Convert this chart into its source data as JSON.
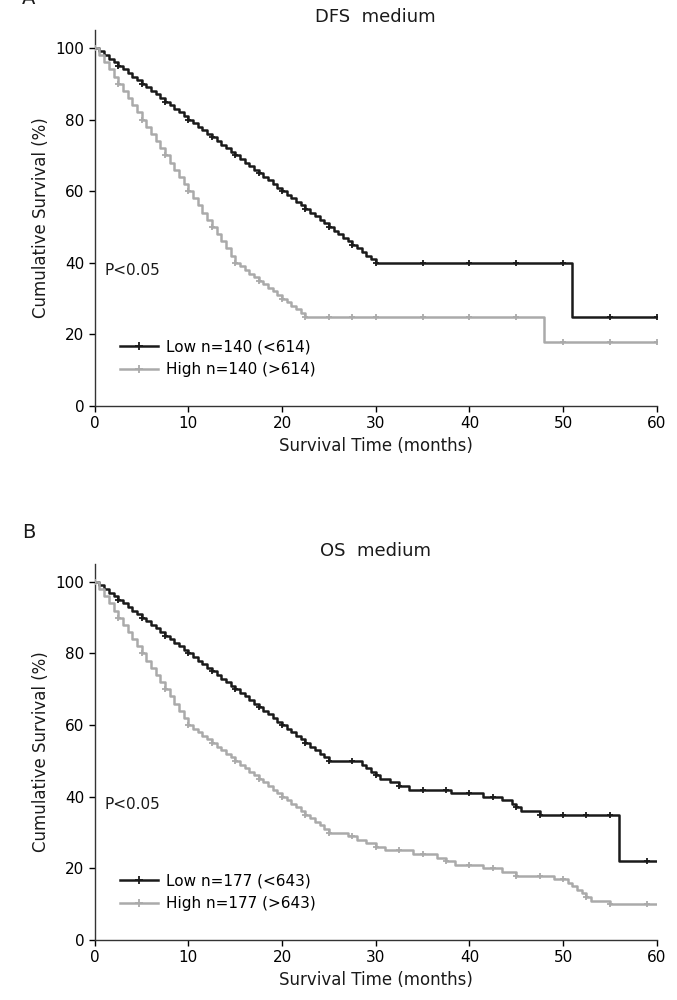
{
  "panel_A": {
    "title": "DFS  medium",
    "xlabel": "Survival Time (months)",
    "ylabel": "Cumulative Survival (%)",
    "pvalue": "P<0.05",
    "legend_low": "Low n=140 (<614)",
    "legend_high": "High n=140 (>614)",
    "xlim": [
      0,
      60
    ],
    "ylim": [
      0,
      105
    ],
    "xticks": [
      0,
      10,
      20,
      30,
      40,
      50,
      60
    ],
    "yticks": [
      0,
      20,
      40,
      60,
      80,
      100
    ],
    "low_x": [
      0,
      0.5,
      1,
      1.5,
      2,
      2.5,
      3,
      3.5,
      4,
      4.5,
      5,
      5.5,
      6,
      6.5,
      7,
      7.5,
      8,
      8.5,
      9,
      9.5,
      10,
      10.5,
      11,
      11.5,
      12,
      12.5,
      13,
      13.5,
      14,
      14.5,
      15,
      15.5,
      16,
      16.5,
      17,
      17.5,
      18,
      18.5,
      19,
      19.5,
      20,
      20.5,
      21,
      21.5,
      22,
      22.5,
      23,
      23.5,
      24,
      24.5,
      25,
      25.5,
      26,
      26.5,
      27,
      27.5,
      28,
      28.5,
      29,
      29.5,
      30,
      31,
      32,
      33,
      34,
      35,
      36,
      37,
      38,
      39,
      40,
      41,
      42,
      43,
      44,
      45,
      46,
      47,
      48,
      49,
      50,
      51,
      52,
      53,
      54,
      55,
      56,
      57,
      58,
      59,
      60
    ],
    "low_y": [
      100,
      99,
      98,
      97,
      96,
      95,
      94,
      93,
      92,
      91,
      90,
      89,
      88,
      87,
      86,
      85,
      84,
      83,
      82,
      81,
      80,
      79,
      78,
      77,
      76,
      75,
      74,
      73,
      72,
      71,
      70,
      69,
      68,
      67,
      66,
      65,
      64,
      63,
      62,
      61,
      60,
      59,
      58,
      57,
      56,
      55,
      54,
      53,
      52,
      51,
      50,
      49,
      48,
      47,
      46,
      45,
      44,
      43,
      42,
      41,
      40,
      40,
      40,
      40,
      40,
      40,
      40,
      40,
      40,
      40,
      40,
      40,
      40,
      40,
      40,
      40,
      40,
      40,
      40,
      40,
      40,
      25,
      25,
      25,
      25,
      25,
      25,
      25,
      25,
      25,
      25
    ],
    "high_x": [
      0,
      0.5,
      1,
      1.5,
      2,
      2.5,
      3,
      3.5,
      4,
      4.5,
      5,
      5.5,
      6,
      6.5,
      7,
      7.5,
      8,
      8.5,
      9,
      9.5,
      10,
      10.5,
      11,
      11.5,
      12,
      12.5,
      13,
      13.5,
      14,
      14.5,
      15,
      15.5,
      16,
      16.5,
      17,
      17.5,
      18,
      18.5,
      19,
      19.5,
      20,
      20.5,
      21,
      21.5,
      22,
      22.5,
      23,
      23.5,
      24,
      24.5,
      25,
      25.5,
      26,
      26.5,
      27,
      27.5,
      28,
      28.5,
      29,
      29.5,
      30,
      31,
      32,
      33,
      34,
      35,
      36,
      37,
      38,
      39,
      40,
      41,
      42,
      43,
      44,
      45,
      46,
      47,
      48,
      49,
      50,
      51,
      52,
      53,
      54,
      55,
      56,
      57,
      58,
      59,
      60
    ],
    "high_y": [
      100,
      98,
      96,
      94,
      92,
      90,
      88,
      86,
      84,
      82,
      80,
      78,
      76,
      74,
      72,
      70,
      68,
      66,
      64,
      62,
      60,
      58,
      56,
      54,
      52,
      50,
      48,
      46,
      44,
      42,
      40,
      39,
      38,
      37,
      36,
      35,
      34,
      33,
      32,
      31,
      30,
      29,
      28,
      27,
      26,
      25,
      25,
      25,
      25,
      25,
      25,
      25,
      25,
      25,
      25,
      25,
      25,
      25,
      25,
      25,
      25,
      25,
      25,
      25,
      25,
      25,
      25,
      25,
      25,
      25,
      25,
      25,
      25,
      25,
      25,
      25,
      25,
      25,
      18,
      18,
      18,
      18,
      18,
      18,
      18,
      18,
      18,
      18,
      18,
      18,
      18
    ]
  },
  "panel_B": {
    "title": "OS  medium",
    "xlabel": "Survival Time (months)",
    "ylabel": "Cumulative Survival (%)",
    "pvalue": "P<0.05",
    "legend_low": "Low n=177 (<643)",
    "legend_high": "High n=177 (>643)",
    "xlim": [
      0,
      60
    ],
    "ylim": [
      0,
      105
    ],
    "xticks": [
      0,
      10,
      20,
      30,
      40,
      50,
      60
    ],
    "yticks": [
      0,
      20,
      40,
      60,
      80,
      100
    ],
    "low_x": [
      0,
      0.5,
      1,
      1.5,
      2,
      2.5,
      3,
      3.5,
      4,
      4.5,
      5,
      5.5,
      6,
      6.5,
      7,
      7.5,
      8,
      8.5,
      9,
      9.5,
      10,
      10.5,
      11,
      11.5,
      12,
      12.5,
      13,
      13.5,
      14,
      14.5,
      15,
      15.5,
      16,
      16.5,
      17,
      17.5,
      18,
      18.5,
      19,
      19.5,
      20,
      20.5,
      21,
      21.5,
      22,
      22.5,
      23,
      23.5,
      24,
      24.5,
      25,
      25.5,
      26,
      26.5,
      27,
      27.5,
      28,
      28.5,
      29,
      29.5,
      30,
      30.5,
      31,
      31.5,
      32,
      32.5,
      33,
      33.5,
      34,
      34.5,
      35,
      35.5,
      36,
      36.5,
      37,
      37.5,
      38,
      38.5,
      39,
      39.5,
      40,
      40.5,
      41,
      41.5,
      42,
      42.5,
      43,
      43.5,
      44,
      44.5,
      45,
      45.5,
      46,
      46.5,
      47,
      47.5,
      48,
      48.5,
      49,
      49.5,
      50,
      50.5,
      51,
      51.5,
      52,
      52.5,
      53,
      53.5,
      54,
      54.5,
      55,
      55.5,
      56,
      57,
      58,
      59,
      60
    ],
    "low_y": [
      100,
      99,
      98,
      97,
      96,
      95,
      94,
      93,
      92,
      91,
      90,
      89,
      88,
      87,
      86,
      85,
      84,
      83,
      82,
      81,
      80,
      79,
      78,
      77,
      76,
      75,
      74,
      73,
      72,
      71,
      70,
      69,
      68,
      67,
      66,
      65,
      64,
      63,
      62,
      61,
      60,
      59,
      58,
      57,
      56,
      55,
      54,
      53,
      52,
      51,
      50,
      50,
      50,
      50,
      50,
      50,
      50,
      49,
      48,
      47,
      46,
      45,
      45,
      44,
      44,
      43,
      43,
      42,
      42,
      42,
      42,
      42,
      42,
      42,
      42,
      42,
      41,
      41,
      41,
      41,
      41,
      41,
      41,
      40,
      40,
      40,
      40,
      39,
      39,
      38,
      37,
      36,
      36,
      36,
      36,
      35,
      35,
      35,
      35,
      35,
      35,
      35,
      35,
      35,
      35,
      35,
      35,
      35,
      35,
      35,
      35,
      35,
      22,
      22,
      22,
      22,
      22
    ],
    "high_x": [
      0,
      0.5,
      1,
      1.5,
      2,
      2.5,
      3,
      3.5,
      4,
      4.5,
      5,
      5.5,
      6,
      6.5,
      7,
      7.5,
      8,
      8.5,
      9,
      9.5,
      10,
      10.5,
      11,
      11.5,
      12,
      12.5,
      13,
      13.5,
      14,
      14.5,
      15,
      15.5,
      16,
      16.5,
      17,
      17.5,
      18,
      18.5,
      19,
      19.5,
      20,
      20.5,
      21,
      21.5,
      22,
      22.5,
      23,
      23.5,
      24,
      24.5,
      25,
      25.5,
      26,
      26.5,
      27,
      27.5,
      28,
      28.5,
      29,
      29.5,
      30,
      30.5,
      31,
      31.5,
      32,
      32.5,
      33,
      33.5,
      34,
      34.5,
      35,
      35.5,
      36,
      36.5,
      37,
      37.5,
      38,
      38.5,
      39,
      39.5,
      40,
      40.5,
      41,
      41.5,
      42,
      42.5,
      43,
      43.5,
      44,
      44.5,
      45,
      45.5,
      46,
      46.5,
      47,
      47.5,
      48,
      48.5,
      49,
      49.5,
      50,
      50.5,
      51,
      51.5,
      52,
      52.5,
      53,
      53.5,
      54,
      54.5,
      55,
      55.5,
      56,
      57,
      58,
      59,
      60
    ],
    "high_y": [
      100,
      98,
      96,
      94,
      92,
      90,
      88,
      86,
      84,
      82,
      80,
      78,
      76,
      74,
      72,
      70,
      68,
      66,
      64,
      62,
      60,
      59,
      58,
      57,
      56,
      55,
      54,
      53,
      52,
      51,
      50,
      49,
      48,
      47,
      46,
      45,
      44,
      43,
      42,
      41,
      40,
      39,
      38,
      37,
      36,
      35,
      34,
      33,
      32,
      31,
      30,
      30,
      30,
      30,
      29,
      29,
      28,
      28,
      27,
      27,
      26,
      26,
      25,
      25,
      25,
      25,
      25,
      25,
      24,
      24,
      24,
      24,
      24,
      23,
      23,
      22,
      22,
      21,
      21,
      21,
      21,
      21,
      21,
      20,
      20,
      20,
      20,
      19,
      19,
      19,
      18,
      18,
      18,
      18,
      18,
      18,
      18,
      18,
      17,
      17,
      17,
      16,
      15,
      14,
      13,
      12,
      11,
      11,
      11,
      11,
      10,
      10,
      10,
      10,
      10,
      10,
      10
    ]
  },
  "low_color": "#1a1a1a",
  "high_color": "#aaaaaa",
  "bg_color": "#ffffff",
  "label_color": "#1a1a1a",
  "tick_fontsize": 11,
  "label_fontsize": 12,
  "title_fontsize": 13,
  "legend_fontsize": 11,
  "pvalue_fontsize": 11,
  "linewidth": 1.8
}
